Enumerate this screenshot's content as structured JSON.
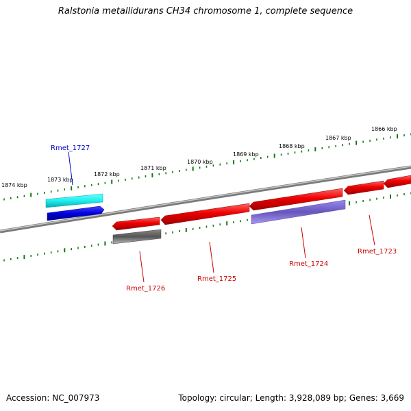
{
  "title": "Ralstonia metallidurans CH34 chromosome 1, complete sequence",
  "footer": {
    "accession": "Accession: NC_007973",
    "summary": "Topology: circular; Length: 3,928,089 bp; Genes: 3,669"
  },
  "kbp_ticks": [
    "1874 kbp",
    "1873 kbp",
    "1872 kbp",
    "1871 kbp",
    "1870 kbp",
    "1869 kbp",
    "1868 kbp",
    "1867 kbp",
    "1866 kbp"
  ],
  "genes": [
    {
      "label": "Rmet_1727",
      "color": "#0000cc",
      "feature_color": "#0000dd"
    },
    {
      "label": "Rmet_1726",
      "color": "#cc0000",
      "feature_color": "#555555"
    },
    {
      "label": "Rmet_1725",
      "color": "#cc0000",
      "feature_color": "#ee0000"
    },
    {
      "label": "Rmet_1724",
      "color": "#cc0000",
      "feature_color": "#7766cc"
    },
    {
      "label": "Rmet_1723",
      "color": "#cc0000",
      "feature_color": "#ee0000"
    }
  ],
  "colors": {
    "backbone": "#888888",
    "tick": "#117711",
    "cds": "#ee0000",
    "rna_cyan": "#22eeee",
    "gene_blue": "#0000dd",
    "misc_gray": "#555555",
    "misc_purple": "#7766cc"
  }
}
